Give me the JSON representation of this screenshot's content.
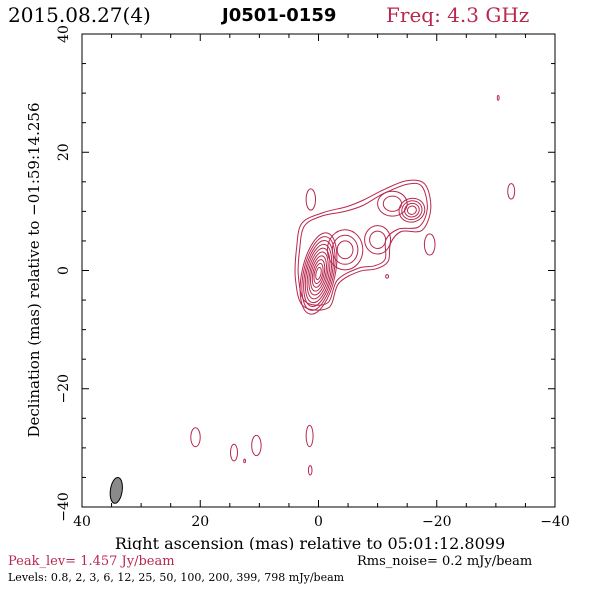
{
  "header": {
    "date": "2015.08.27(4)",
    "source": "J0501-0159",
    "freq": "Freq: 4.3 GHz"
  },
  "chart_data": {
    "type": "contour",
    "xlabel": "Right ascension (mas) relative to 05:01:12.8099",
    "ylabel": "Declination (mas) relative to −01:59:14.256",
    "xlim": [
      40,
      -40
    ],
    "ylim": [
      -40,
      40
    ],
    "x_ticks": [
      40,
      20,
      0,
      -20,
      -40
    ],
    "x_tick_labels": [
      "40",
      "20",
      "0",
      "−20",
      "−40"
    ],
    "y_ticks": [
      -40,
      -20,
      0,
      20,
      40
    ],
    "y_tick_labels": [
      "−40",
      "−20",
      "0",
      "20",
      "40"
    ],
    "contour_color": "#b8284f",
    "beam": {
      "x": 34.2,
      "y": -37.2,
      "major_mas": 4.4,
      "minor_mas": 2.0
    },
    "components": [
      {
        "name": "core",
        "x": 0,
        "y": -0.5,
        "rx": 2.8,
        "ry": 7.0,
        "tilt": 12,
        "rings": 10
      },
      {
        "name": "knot-1",
        "x": -4.5,
        "y": 3.5,
        "rx": 3.0,
        "ry": 3.4,
        "tilt": 0,
        "rings": 3
      },
      {
        "name": "knot-2",
        "x": -10,
        "y": 5.2,
        "rx": 2.2,
        "ry": 2.4,
        "tilt": 0,
        "rings": 2
      },
      {
        "name": "knot-3",
        "x": -15.8,
        "y": 10.2,
        "rx": 2.2,
        "ry": 2.0,
        "tilt": -20,
        "rings": 4
      },
      {
        "name": "knot-4",
        "x": -12.5,
        "y": 11.3,
        "rx": 2.5,
        "ry": 2.1,
        "tilt": 0,
        "rings": 2
      }
    ],
    "outer_contours": [
      {
        "name": "jet-outer-2",
        "points": [
          [
            3.2,
            3.5
          ],
          [
            2.4,
            7.5
          ],
          [
            -0.5,
            9.2
          ],
          [
            -4.5,
            10.0
          ],
          [
            -7.5,
            11.0
          ],
          [
            -11,
            13.0
          ],
          [
            -15,
            14.6
          ],
          [
            -17.5,
            14.2
          ],
          [
            -18.4,
            10.5
          ],
          [
            -17,
            7.4
          ],
          [
            -13.5,
            7.0
          ],
          [
            -11.4,
            5.2
          ],
          [
            -11.3,
            2.0
          ],
          [
            -9.5,
            0.8
          ],
          [
            -6.8,
            0.4
          ],
          [
            -3.2,
            -1.6
          ],
          [
            -1.5,
            -5.5
          ],
          [
            2.3,
            -5.2
          ],
          [
            3.4,
            -1.0
          ]
        ]
      },
      {
        "name": "jet-outer-1",
        "points": [
          [
            3.7,
            3.8
          ],
          [
            2.8,
            8.0
          ],
          [
            -0.8,
            9.8
          ],
          [
            -4.8,
            10.8
          ],
          [
            -7.8,
            12.0
          ],
          [
            -11.3,
            13.8
          ],
          [
            -15,
            15.2
          ],
          [
            -18,
            14.6
          ],
          [
            -19.0,
            10.5
          ],
          [
            -17.5,
            6.8
          ],
          [
            -14,
            6.6
          ],
          [
            -12.2,
            4.6
          ],
          [
            -11.8,
            1.6
          ],
          [
            -9.8,
            0.3
          ],
          [
            -6.8,
            -0.2
          ],
          [
            -3.4,
            -2.2
          ],
          [
            -1.7,
            -6.3
          ],
          [
            2.6,
            -6.0
          ],
          [
            3.9,
            -1.4
          ]
        ]
      }
    ],
    "small_components": [
      {
        "name": "blob-upper-left",
        "x": 1.3,
        "y": 12.0,
        "rx": 0.8,
        "ry": 1.8
      },
      {
        "name": "blob-right-1",
        "x": -18.8,
        "y": 4.4,
        "rx": 0.9,
        "ry": 1.8
      },
      {
        "name": "blob-far-right",
        "x": -32.6,
        "y": 13.4,
        "rx": 0.6,
        "ry": 1.3
      },
      {
        "name": "blob-dot-1",
        "x": -11.6,
        "y": -1.0,
        "rx": 0.25,
        "ry": 0.3
      },
      {
        "name": "blob-dot-2",
        "x": -30.4,
        "y": 29.2,
        "rx": 0.15,
        "ry": 0.4
      },
      {
        "name": "blob-low-1",
        "x": 20.8,
        "y": -28.2,
        "rx": 0.8,
        "ry": 1.6
      },
      {
        "name": "blob-low-2",
        "x": 14.3,
        "y": -30.8,
        "rx": 0.6,
        "ry": 1.4
      },
      {
        "name": "blob-low-3",
        "x": 10.5,
        "y": -29.6,
        "rx": 0.8,
        "ry": 1.7
      },
      {
        "name": "blob-low-4",
        "x": 1.5,
        "y": -28.0,
        "rx": 0.6,
        "ry": 1.8
      },
      {
        "name": "blob-low-5",
        "x": 1.4,
        "y": -33.8,
        "rx": 0.3,
        "ry": 0.8
      },
      {
        "name": "blob-low-dot",
        "x": 12.5,
        "y": -32.2,
        "rx": 0.15,
        "ry": 0.3
      }
    ]
  },
  "footer": {
    "peak": "Peak_lev=  1.457 Jy/beam",
    "rms": "Rms_noise=  0.2 mJy/beam",
    "levels": "Levels: 0.8,   2,   3,   6,  12,  25,  50, 100, 200, 399, 798 mJy/beam"
  }
}
